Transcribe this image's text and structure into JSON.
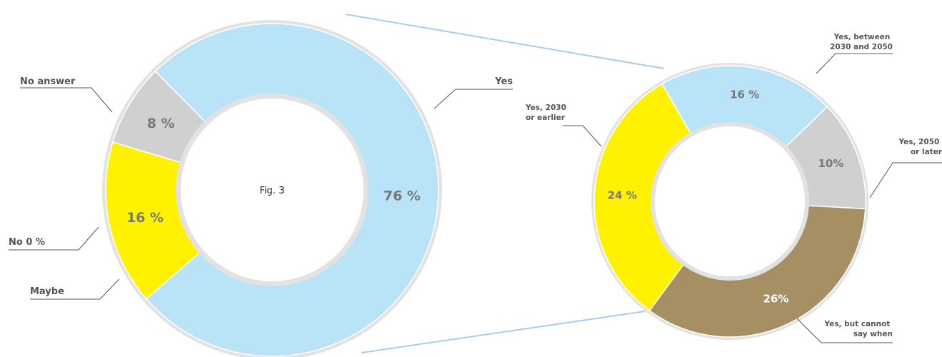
{
  "chart_data": [
    {
      "type": "pie",
      "style": "donut",
      "caption": "Fig. 3",
      "slices": [
        {
          "label": "Yes",
          "value": 76,
          "value_label": "76 %",
          "color": "#b9e4f8"
        },
        {
          "label": "No answer",
          "value": 16,
          "value_label": "16 %",
          "color": "#fff200"
        },
        {
          "label": "No 0 %",
          "value": 0,
          "value_label": "",
          "color": "#d0d0d0"
        },
        {
          "label": "Maybe",
          "value": 8,
          "value_label": "8 %",
          "color": "#d0d0d1"
        }
      ]
    },
    {
      "type": "pie",
      "style": "donut",
      "slices": [
        {
          "label": "Yes, between 2030 and 2050",
          "label_lines": [
            "Yes, between",
            "2030 and 2050"
          ],
          "value": 16,
          "value_label": "16 %",
          "color": "#b9e4f8"
        },
        {
          "label": "Yes, 2050 or later",
          "label_lines": [
            "Yes, 2050",
            "or later"
          ],
          "value": 10,
          "value_label": "10%",
          "color": "#d0d0d1"
        },
        {
          "label": "Yes, but cannot say when",
          "label_lines": [
            "Yes, but cannot",
            "say when"
          ],
          "value": 26,
          "value_label": "26%",
          "color": "#a58f63"
        },
        {
          "label": "Yes, 2030 or earlier",
          "label_lines": [
            "Yes, 2030",
            "or earlier"
          ],
          "value": 24,
          "value_label": "24 %",
          "color": "#fff200"
        }
      ]
    }
  ],
  "colors": {
    "ring": "#e2e2e2",
    "connector": "#a9cde8",
    "leader": "#555555"
  }
}
